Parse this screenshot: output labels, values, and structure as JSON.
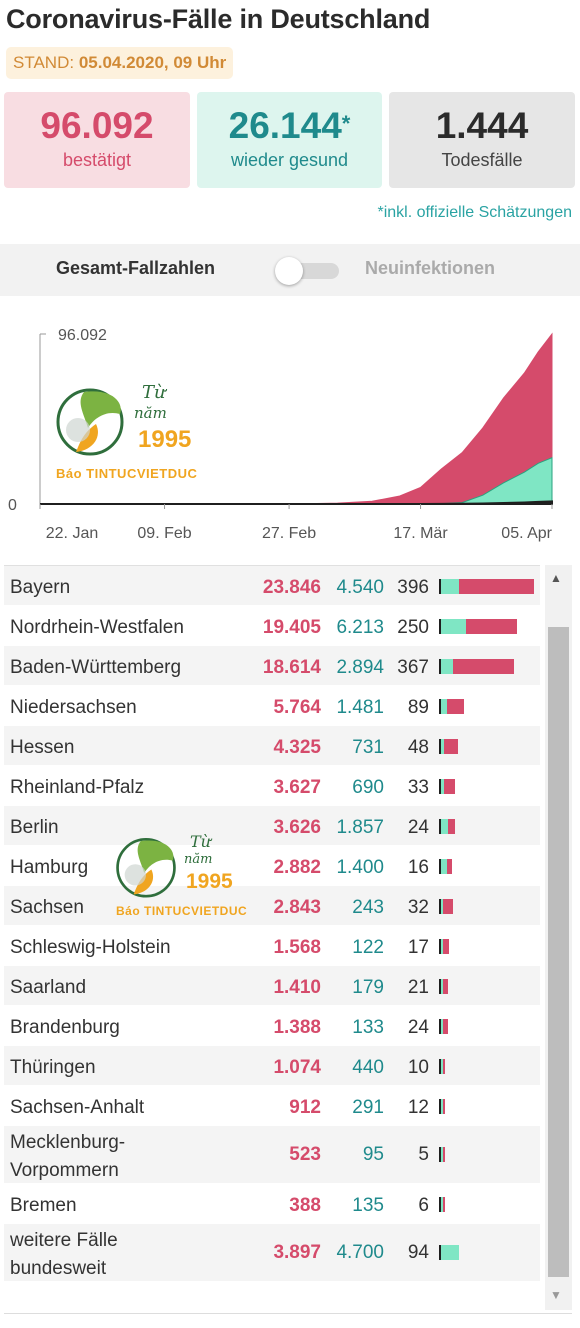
{
  "header": {
    "title": "Coronavirus-Fälle in Deutschland",
    "stand_label": "STAND:",
    "stand_value": "05.04.2020, 09 Uhr"
  },
  "cards": {
    "confirmed": {
      "value": "96.092",
      "label": "bestätigt"
    },
    "recovered": {
      "value": "26.144",
      "mark": "*",
      "label": "wieder gesund"
    },
    "deaths": {
      "value": "1.444",
      "label": "Todesfälle"
    },
    "note": "*inkl. offizielle Schätzungen"
  },
  "toggle": {
    "left_label": "Gesamt-Fallzahlen",
    "right_label": "Neuinfektionen",
    "state": "off"
  },
  "watermark": {
    "line1": "Từ",
    "line2": "năm",
    "year": "1995",
    "brand": "Báo TINTUCVIETDUC"
  },
  "colors": {
    "confirmed": "#d54b6b",
    "recovered": "#7fe6c4",
    "recovered_text": "#1f8a8c",
    "deaths": "#1f1f1f",
    "stand_bg": "#fdf1dd"
  },
  "chart_data": {
    "type": "area",
    "title": "",
    "xlabel": "",
    "ylabel": "",
    "x_ticks": [
      "22. Jan",
      "09. Feb",
      "27. Feb",
      "17. Mär",
      "05. Apr"
    ],
    "y_ticks": [
      "0",
      "96.092"
    ],
    "ylim": [
      0,
      96092
    ],
    "x": [
      "22. Jan",
      "09. Feb",
      "27. Feb",
      "05. Mär",
      "10. Mär",
      "14. Mär",
      "17. Mär",
      "20. Mär",
      "23. Mär",
      "26. Mär",
      "29. Mär",
      "01. Apr",
      "03. Apr",
      "05. Apr"
    ],
    "series": [
      {
        "values": [
          0,
          16,
          18,
          500,
          1500,
          4500,
          9300,
          19800,
          29000,
          43000,
          60000,
          74000,
          86000,
          96092
        ]
      },
      {
        "values": [
          0,
          0,
          15,
          20,
          25,
          50,
          100,
          200,
          800,
          5000,
          12000,
          18000,
          23000,
          26144
        ]
      },
      {
        "values": [
          0,
          0,
          0,
          0,
          2,
          9,
          26,
          68,
          126,
          262,
          541,
          872,
          1160,
          1444
        ]
      }
    ]
  },
  "table": {
    "rows": [
      {
        "name": "Bayern",
        "confirmed": "23.846",
        "recovered": "4.540",
        "deaths": "396",
        "c": 23846,
        "r": 4540,
        "d": 396
      },
      {
        "name": "Nordrhein-Westfalen",
        "confirmed": "19.405",
        "recovered": "6.213",
        "deaths": "250",
        "c": 19405,
        "r": 6213,
        "d": 250
      },
      {
        "name": "Baden-Württemberg",
        "confirmed": "18.614",
        "recovered": "2.894",
        "deaths": "367",
        "c": 18614,
        "r": 2894,
        "d": 367
      },
      {
        "name": "Niedersachsen",
        "confirmed": "5.764",
        "recovered": "1.481",
        "deaths": "89",
        "c": 5764,
        "r": 1481,
        "d": 89
      },
      {
        "name": "Hessen",
        "confirmed": "4.325",
        "recovered": "731",
        "deaths": "48",
        "c": 4325,
        "r": 731,
        "d": 48
      },
      {
        "name": "Rheinland-Pfalz",
        "confirmed": "3.627",
        "recovered": "690",
        "deaths": "33",
        "c": 3627,
        "r": 690,
        "d": 33
      },
      {
        "name": "Berlin",
        "confirmed": "3.626",
        "recovered": "1.857",
        "deaths": "24",
        "c": 3626,
        "r": 1857,
        "d": 24
      },
      {
        "name": "Hamburg",
        "confirmed": "2.882",
        "recovered": "1.400",
        "deaths": "16",
        "c": 2882,
        "r": 1400,
        "d": 16
      },
      {
        "name": "Sachsen",
        "confirmed": "2.843",
        "recovered": "243",
        "deaths": "32",
        "c": 2843,
        "r": 243,
        "d": 32
      },
      {
        "name": "Schleswig-Holstein",
        "confirmed": "1.568",
        "recovered": "122",
        "deaths": "17",
        "c": 1568,
        "r": 122,
        "d": 17
      },
      {
        "name": "Saarland",
        "confirmed": "1.410",
        "recovered": "179",
        "deaths": "21",
        "c": 1410,
        "r": 179,
        "d": 21
      },
      {
        "name": "Brandenburg",
        "confirmed": "1.388",
        "recovered": "133",
        "deaths": "24",
        "c": 1388,
        "r": 133,
        "d": 24
      },
      {
        "name": "Thüringen",
        "confirmed": "1.074",
        "recovered": "440",
        "deaths": "10",
        "c": 1074,
        "r": 440,
        "d": 10
      },
      {
        "name": "Sachsen-Anhalt",
        "confirmed": "912",
        "recovered": "291",
        "deaths": "12",
        "c": 912,
        "r": 291,
        "d": 12
      },
      {
        "name": "Mecklenburg-\nVorpommern",
        "confirmed": "523",
        "recovered": "95",
        "deaths": "5",
        "c": 523,
        "r": 95,
        "d": 5,
        "tall": true
      },
      {
        "name": "Bremen",
        "confirmed": "388",
        "recovered": "135",
        "deaths": "6",
        "c": 388,
        "r": 135,
        "d": 6
      },
      {
        "name": "weitere Fälle\nbundesweit",
        "confirmed": "3.897",
        "recovered": "4.700",
        "deaths": "94",
        "c": 3897,
        "r": 4700,
        "d": 94,
        "tall": true,
        "no_confirmed_bar": true
      }
    ]
  },
  "scrollbar": {
    "up_icon": "▲",
    "down_icon": "▼"
  }
}
